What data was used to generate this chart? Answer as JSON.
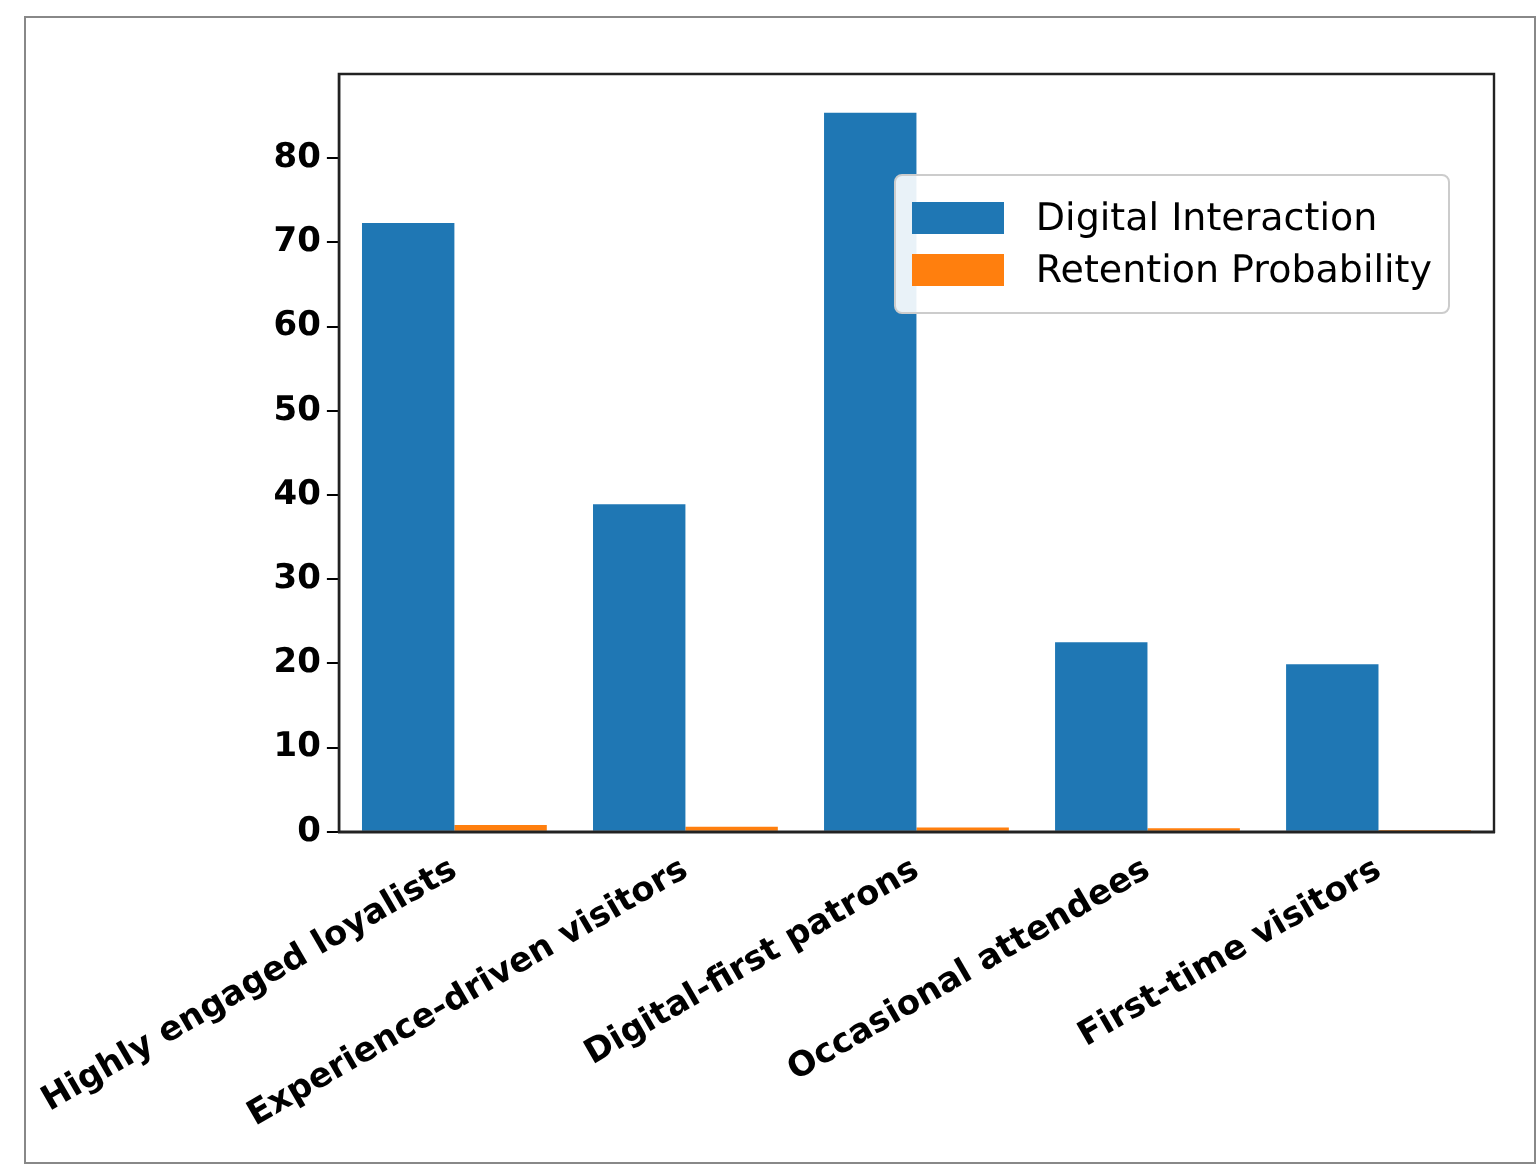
{
  "chart_data": {
    "type": "bar",
    "categories": [
      "Highly engaged loyalists",
      "Experience-driven visitors",
      "Digital-first patrons",
      "Occasional attendees",
      "First-time visitors"
    ],
    "series": [
      {
        "name": "Digital Interaction",
        "color": "#1f77b4",
        "values": [
          72.3,
          38.9,
          85.4,
          22.5,
          19.9
        ]
      },
      {
        "name": "Retention Probability",
        "color": "#ff7f0e",
        "values": [
          0.8,
          0.6,
          0.5,
          0.4,
          0.2
        ]
      }
    ],
    "ylim": [
      0,
      90
    ],
    "yticks": [
      0,
      10,
      20,
      30,
      40,
      50,
      60,
      70,
      80
    ],
    "grid": false,
    "legend": "top right"
  }
}
